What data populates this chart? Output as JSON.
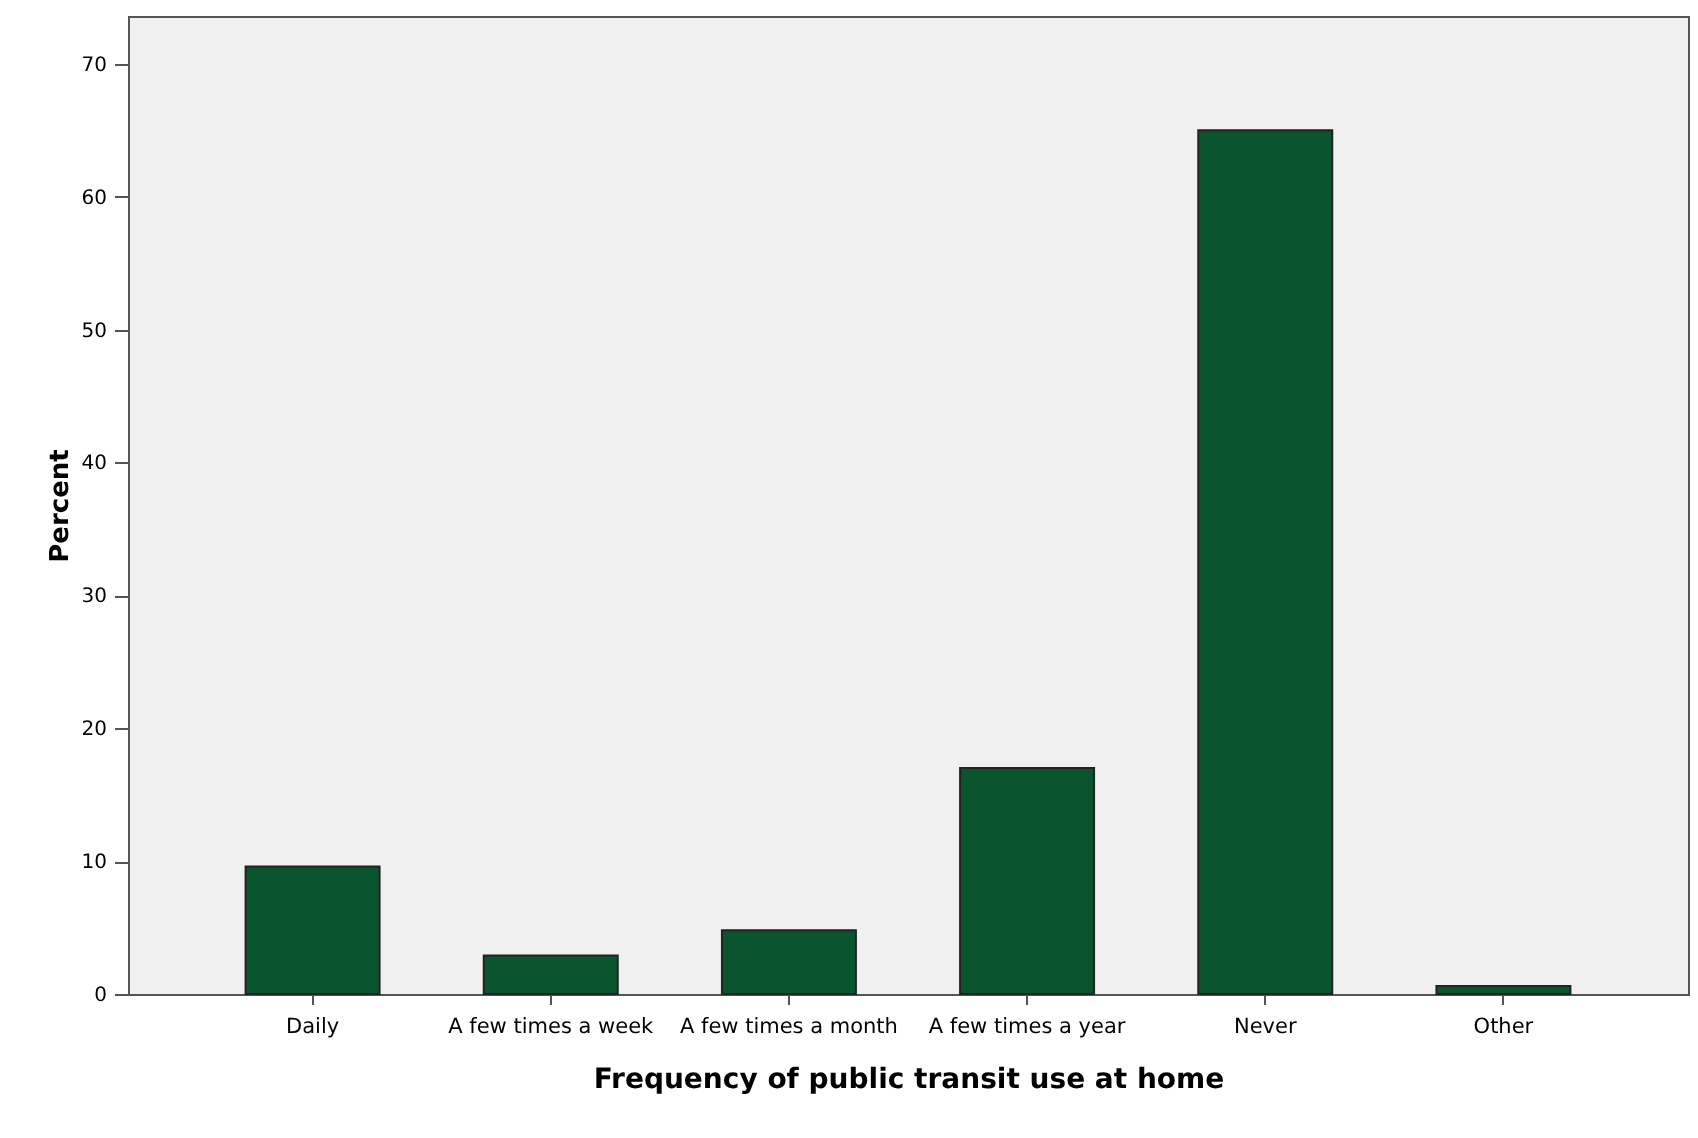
{
  "chart_data": {
    "type": "bar",
    "xlabel": "Frequency of public transit use at home",
    "ylabel": "Percent",
    "categories": [
      "Daily",
      "A few times a week",
      "A few times a month",
      "A few times a year",
      "Never",
      "Other"
    ],
    "values": [
      9.6,
      2.9,
      4.8,
      17.0,
      65.0,
      0.6
    ],
    "color": "#0b552e",
    "ylim": [
      0,
      73.6
    ],
    "yticks": [
      0,
      10,
      20,
      30,
      40,
      50,
      60,
      70
    ],
    "grid": false,
    "legend": false
  }
}
